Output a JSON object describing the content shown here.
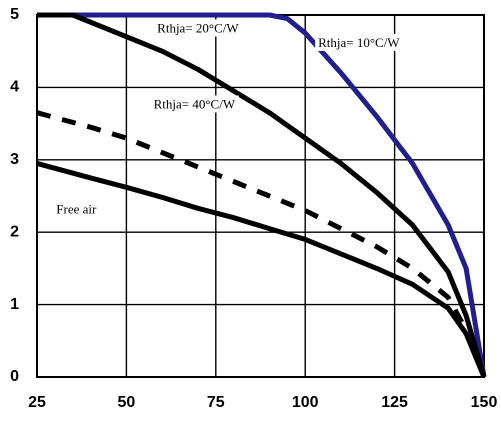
{
  "chart_data": {
    "type": "line",
    "title": "",
    "xlabel": "",
    "ylabel": "",
    "xlim": [
      25,
      150
    ],
    "ylim": [
      0,
      5
    ],
    "x_ticks": [
      25,
      50,
      75,
      100,
      125,
      150
    ],
    "y_ticks": [
      0,
      1,
      2,
      3,
      4,
      5
    ],
    "grid": true,
    "legend": "none",
    "series": [
      {
        "color": "#1f1f8f",
        "style": "solid",
        "x": [
          25,
          35,
          90,
          95,
          100,
          110,
          120,
          130,
          140,
          145,
          150
        ],
        "y": [
          5,
          5,
          5,
          4.95,
          4.75,
          4.2,
          3.6,
          2.95,
          2.1,
          1.5,
          0
        ]
      },
      {
        "color": "#000000",
        "style": "solid",
        "x": [
          25,
          35,
          50,
          60,
          70,
          80,
          90,
          100,
          110,
          120,
          130,
          140,
          145,
          150
        ],
        "y": [
          5,
          5,
          4.7,
          4.5,
          4.25,
          3.95,
          3.65,
          3.3,
          2.95,
          2.55,
          2.1,
          1.45,
          0.85,
          0
        ]
      },
      {
        "color": "#000000",
        "style": "dashed",
        "x": [
          25,
          40,
          50,
          60,
          70,
          80,
          90,
          100,
          110,
          120,
          130,
          140,
          145,
          150
        ],
        "y": [
          3.65,
          3.45,
          3.3,
          3.1,
          2.9,
          2.7,
          2.5,
          2.3,
          2.05,
          1.8,
          1.5,
          1.1,
          0.65,
          0
        ]
      },
      {
        "color": "#000000",
        "style": "solid",
        "x": [
          25,
          40,
          50,
          60,
          70,
          80,
          90,
          100,
          110,
          120,
          130,
          140,
          145,
          150
        ],
        "y": [
          2.95,
          2.75,
          2.62,
          2.48,
          2.33,
          2.2,
          2.05,
          1.9,
          1.7,
          1.5,
          1.28,
          0.95,
          0.6,
          0
        ]
      }
    ],
    "annotations": [
      {
        "text": "Rthja= 20°C/W",
        "x": 70,
        "y": 4.8
      },
      {
        "text": "Rthja= 10°C/W",
        "x": 115,
        "y": 4.6
      },
      {
        "text": "Rthja= 40°C/W",
        "x": 69,
        "y": 3.75
      },
      {
        "text": "Free air",
        "x": 36,
        "y": 2.3
      }
    ]
  }
}
